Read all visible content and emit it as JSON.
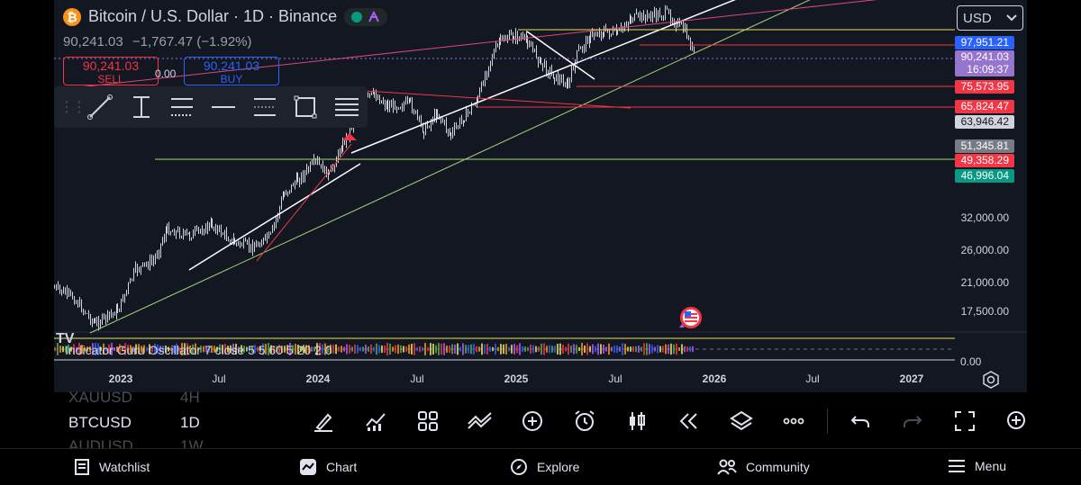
{
  "header": {
    "title": "Bitcoin / U.S. Dollar · 1D · Binance",
    "coin_glyph": "₿",
    "price": "90,241.03",
    "change": "−1,767.47 (−1.92%)"
  },
  "trade": {
    "sell_price": "90,241.03",
    "sell_label": "SELL",
    "spread": "0.00",
    "buy_price": "90,241.03",
    "buy_label": "BUY"
  },
  "currency": "USD",
  "price_axis": {
    "tags": [
      {
        "label": "97,951.21",
        "color": "#2962ff"
      },
      {
        "label": "90,241.03",
        "color": "#9575cd"
      },
      {
        "label": "16:09:37",
        "color": "#9575cd"
      },
      {
        "label": "75,573.95",
        "color": "#f23645"
      },
      {
        "label": "65,824.47",
        "color": "#f23645"
      },
      {
        "label": "63,946.42",
        "color": "#d1d4dc"
      },
      {
        "label": "51,345.81",
        "color": "#787b86"
      },
      {
        "label": "49,358.29",
        "color": "#f23645"
      },
      {
        "label": "46,996.04",
        "color": "#089981"
      }
    ],
    "ticks": [
      "32,000.00",
      "26,000.00",
      "21,000.00",
      "17,500.00"
    ],
    "osc_zero": "0.00"
  },
  "time_axis": [
    "2023",
    "Jul",
    "2024",
    "Jul",
    "2025",
    "Jul",
    "2026",
    "Jul",
    "2027"
  ],
  "indicator": {
    "label": "Indicator Guru Oscillator 7 close 5 5 60 5 20 2 0",
    "logo": "TV"
  },
  "symbols": [
    {
      "name": "XAUUSD",
      "tf": "4H"
    },
    {
      "name": "BTCUSD",
      "tf": "1D"
    },
    {
      "name": "AUDUSD",
      "tf": "1W"
    }
  ],
  "bottom_nav": {
    "watchlist": "Watchlist",
    "chart": "Chart",
    "explore": "Explore",
    "community": "Community",
    "menu": "Menu"
  },
  "colors": {
    "background": "#131722",
    "sell": "#f23645",
    "buy": "#2962ff",
    "trend_green": "#a5d67a",
    "level_yellow": "#e8e35a"
  }
}
